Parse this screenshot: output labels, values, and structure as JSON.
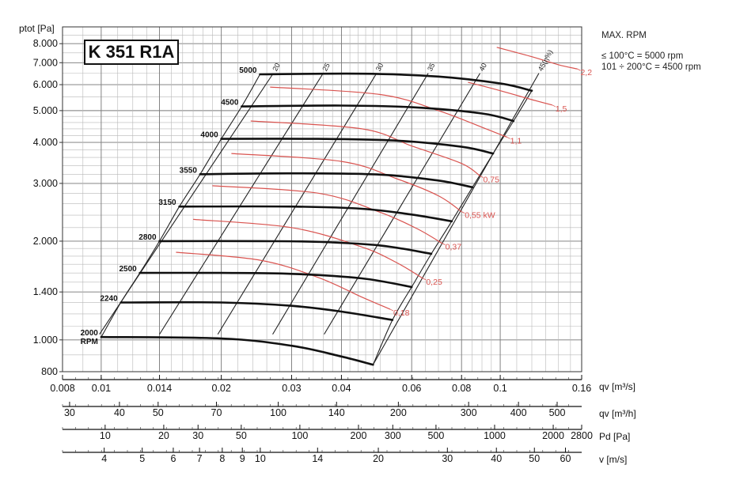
{
  "model_label": "K 351 R1A",
  "notes": {
    "title": "MAX. RPM",
    "line1": "≤ 100°C = 5000 rpm",
    "line2": "101 ÷ 200°C = 4500 rpm"
  },
  "chart_data": {
    "type": "line",
    "y_axis": {
      "label": "ptot [Pa]",
      "scale": "log",
      "range": [
        800,
        9000
      ],
      "ticks": [
        "800",
        "1.000",
        "1.400",
        "2.000",
        "3.000",
        "4.000",
        "5.000",
        "6.000",
        "7.000",
        "8.000"
      ],
      "tick_values": [
        800,
        1000,
        1400,
        2000,
        3000,
        4000,
        5000,
        6000,
        7000,
        8000
      ]
    },
    "x_axes": [
      {
        "label": "qv [m³/s]",
        "scale": "log",
        "ticks": [
          "0.008",
          "0.01",
          "0.014",
          "0.02",
          "0.03",
          "0.04",
          "0.06",
          "0.08",
          "0.1",
          "0.16"
        ],
        "tick_values": [
          0.008,
          0.01,
          0.014,
          0.02,
          0.03,
          0.04,
          0.06,
          0.08,
          0.1,
          0.16
        ]
      },
      {
        "label": "qv [m³/h]",
        "scale": "log",
        "ticks": [
          "30",
          "40",
          "50",
          "70",
          "100",
          "140",
          "200",
          "300",
          "400",
          "500"
        ],
        "tick_values": [
          30,
          40,
          50,
          70,
          100,
          140,
          200,
          300,
          400,
          500
        ]
      },
      {
        "label": "Pd [Pa]",
        "scale": "log",
        "ticks": [
          "10",
          "20",
          "30",
          "50",
          "100",
          "200",
          "300",
          "500",
          "1000",
          "2000",
          "2800"
        ],
        "tick_values": [
          10,
          20,
          30,
          50,
          100,
          200,
          300,
          500,
          1000,
          2000,
          2800
        ]
      },
      {
        "label": "v [m/s]",
        "scale": "log",
        "ticks": [
          "4",
          "5",
          "6",
          "7",
          "8",
          "9",
          "10",
          "14",
          "20",
          "30",
          "40",
          "50",
          "60"
        ],
        "tick_values": [
          4,
          5,
          6,
          7,
          8,
          9,
          10,
          14,
          20,
          30,
          40,
          50,
          60
        ]
      }
    ],
    "rpm_curves": [
      {
        "name": "2000",
        "unit": "RPM",
        "points": [
          [
            0.01,
            1020
          ],
          [
            0.02,
            1010
          ],
          [
            0.03,
            960
          ],
          [
            0.04,
            890
          ],
          [
            0.048,
            840
          ]
        ]
      },
      {
        "name": "2240",
        "points": [
          [
            0.0112,
            1300
          ],
          [
            0.02,
            1300
          ],
          [
            0.03,
            1270
          ],
          [
            0.04,
            1220
          ],
          [
            0.0537,
            1150
          ]
        ]
      },
      {
        "name": "2500",
        "points": [
          [
            0.0125,
            1600
          ],
          [
            0.02,
            1600
          ],
          [
            0.03,
            1590
          ],
          [
            0.045,
            1540
          ],
          [
            0.06,
            1450
          ]
        ]
      },
      {
        "name": "2800",
        "points": [
          [
            0.014,
            2000
          ],
          [
            0.025,
            2000
          ],
          [
            0.035,
            1990
          ],
          [
            0.05,
            1940
          ],
          [
            0.0672,
            1830
          ]
        ]
      },
      {
        "name": "3150",
        "points": [
          [
            0.0157,
            2550
          ],
          [
            0.03,
            2550
          ],
          [
            0.045,
            2510
          ],
          [
            0.06,
            2410
          ],
          [
            0.0756,
            2300
          ]
        ]
      },
      {
        "name": "3550",
        "points": [
          [
            0.0177,
            3200
          ],
          [
            0.03,
            3220
          ],
          [
            0.05,
            3190
          ],
          [
            0.07,
            3060
          ],
          [
            0.0852,
            2920
          ]
        ]
      },
      {
        "name": "4000",
        "points": [
          [
            0.02,
            4100
          ],
          [
            0.035,
            4100
          ],
          [
            0.055,
            4050
          ],
          [
            0.08,
            3880
          ],
          [
            0.096,
            3700
          ]
        ]
      },
      {
        "name": "4500",
        "points": [
          [
            0.0225,
            5150
          ],
          [
            0.04,
            5180
          ],
          [
            0.06,
            5120
          ],
          [
            0.09,
            4900
          ],
          [
            0.108,
            4650
          ]
        ]
      },
      {
        "name": "5000",
        "points": [
          [
            0.025,
            6450
          ],
          [
            0.045,
            6480
          ],
          [
            0.07,
            6350
          ],
          [
            0.1,
            6050
          ],
          [
            0.12,
            5750
          ]
        ]
      }
    ],
    "power_curves": [
      {
        "name": "0,18",
        "points": [
          [
            0.0154,
            1850
          ],
          [
            0.025,
            1750
          ],
          [
            0.035,
            1550
          ],
          [
            0.045,
            1350
          ],
          [
            0.053,
            1240
          ]
        ]
      },
      {
        "name": "0,25",
        "points": [
          [
            0.017,
            2330
          ],
          [
            0.03,
            2200
          ],
          [
            0.045,
            1920
          ],
          [
            0.055,
            1720
          ],
          [
            0.064,
            1540
          ]
        ]
      },
      {
        "name": "0,37",
        "points": [
          [
            0.019,
            2950
          ],
          [
            0.035,
            2800
          ],
          [
            0.05,
            2450
          ],
          [
            0.062,
            2180
          ],
          [
            0.0715,
            1970
          ]
        ]
      },
      {
        "name": "0,55 kW",
        "points": [
          [
            0.0212,
            3700
          ],
          [
            0.04,
            3500
          ],
          [
            0.055,
            3100
          ],
          [
            0.07,
            2750
          ],
          [
            0.08,
            2460
          ]
        ]
      },
      {
        "name": "0,75",
        "points": [
          [
            0.0237,
            4650
          ],
          [
            0.045,
            4400
          ],
          [
            0.06,
            3900
          ],
          [
            0.08,
            3450
          ],
          [
            0.089,
            3160
          ]
        ]
      },
      {
        "name": "1,1",
        "points": [
          [
            0.0265,
            5900
          ],
          [
            0.05,
            5600
          ],
          [
            0.07,
            5000
          ],
          [
            0.09,
            4450
          ],
          [
            0.104,
            4150
          ]
        ]
      },
      {
        "name": "1,5",
        "points": [
          [
            0.083,
            6100
          ],
          [
            0.1,
            5750
          ],
          [
            0.12,
            5400
          ],
          [
            0.135,
            5200
          ]
        ]
      },
      {
        "name": "2,2",
        "points": [
          [
            0.098,
            7800
          ],
          [
            0.12,
            7300
          ],
          [
            0.14,
            6900
          ],
          [
            0.156,
            6700
          ]
        ]
      }
    ],
    "efficiency_lines": [
      {
        "name": "20",
        "points": [
          [
            0.0099,
            1040
          ],
          [
            0.027,
            6500
          ]
        ]
      },
      {
        "name": "25",
        "points": [
          [
            0.014,
            1040
          ],
          [
            0.036,
            6500
          ]
        ]
      },
      {
        "name": "30",
        "points": [
          [
            0.0196,
            1040
          ],
          [
            0.049,
            6500
          ]
        ]
      },
      {
        "name": "35",
        "points": [
          [
            0.0269,
            1040
          ],
          [
            0.066,
            6500
          ]
        ]
      },
      {
        "name": "40",
        "points": [
          [
            0.0362,
            1040
          ],
          [
            0.089,
            6500
          ]
        ]
      },
      {
        "name": "45(η%)",
        "points": [
          [
            0.048,
            840
          ],
          [
            0.125,
            6500
          ]
        ]
      }
    ],
    "grid": true
  }
}
